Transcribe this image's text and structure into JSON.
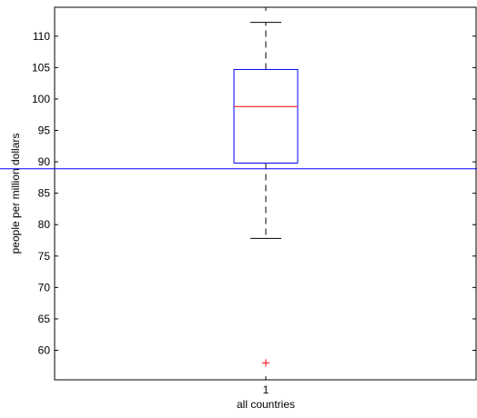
{
  "chart_data": {
    "type": "boxplot",
    "xlabel": "all countries",
    "ylabel": "people per million dollars",
    "ylim": [
      55.3,
      114.6
    ],
    "yticks": [
      60,
      65,
      70,
      75,
      80,
      85,
      90,
      95,
      100,
      105,
      110
    ],
    "categories": [
      "1"
    ],
    "boxes": [
      {
        "category": "1",
        "whisker_low": 77.8,
        "q1": 89.8,
        "median": 98.8,
        "q3": 104.7,
        "whisker_high": 112.2,
        "outliers": [
          58.0
        ]
      }
    ],
    "reference_line": {
      "value": 88.9,
      "color": "#0000ff"
    },
    "colors": {
      "box": "#0000ff",
      "median": "#ff0000",
      "whisker": "#000000",
      "outlier": "#ff0000"
    },
    "outlier_marker": "+",
    "grid": false
  }
}
